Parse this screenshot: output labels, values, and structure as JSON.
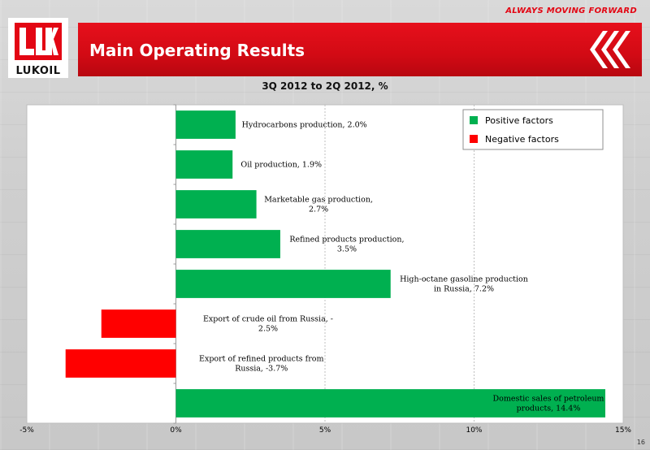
{
  "header": {
    "tagline": "ALWAYS MOVING FORWARD",
    "title": "Main Operating Results",
    "logo_text": "LUKOIL",
    "page_number": "16"
  },
  "colors": {
    "brand_red": "#e30613",
    "positive": "#00b050",
    "negative": "#ff0000"
  },
  "chart_data": {
    "type": "bar",
    "orientation": "horizontal",
    "title": "3Q 2012 to 2Q 2012, %",
    "categories": [
      "Hydrocarbons production",
      "Oil production",
      "Marketable gas production",
      "Refined products production",
      "High-octane gasoline production in Russia",
      "Export of crude oil from Russia",
      "Export of refined products from Russia",
      "Domestic sales of petroleum products"
    ],
    "values": [
      2.0,
      1.9,
      2.7,
      3.5,
      7.2,
      -2.5,
      -3.7,
      14.4
    ],
    "data_labels": [
      [
        "Hydrocarbons production, 2.0%"
      ],
      [
        "Oil production, 1.9%"
      ],
      [
        "Marketable gas production,",
        "2.7%"
      ],
      [
        "Refined products production,",
        "3.5%"
      ],
      [
        "High-octane gasoline production",
        "in Russia, 7.2%"
      ],
      [
        "Export of crude oil from Russia, -",
        "2.5%"
      ],
      [
        "Export of refined products from",
        "Russia, -3.7%"
      ],
      [
        "Domestic sales of petroleum",
        "products, 14.4%"
      ]
    ],
    "xlim": [
      -5,
      15
    ],
    "xticks": [
      -5,
      0,
      5,
      10,
      15
    ],
    "xtick_labels": [
      "-5%",
      "0%",
      "5%",
      "10%",
      "15%"
    ],
    "legend": {
      "placement": "top-right",
      "entries": [
        {
          "label": "Positive factors",
          "color": "#00b050"
        },
        {
          "label": "Negative factors",
          "color": "#ff0000"
        }
      ]
    },
    "grid": "vertical dashed"
  }
}
